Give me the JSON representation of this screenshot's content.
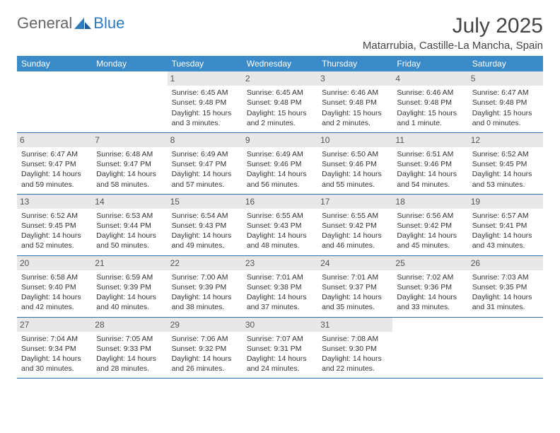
{
  "brand": {
    "part1": "General",
    "part2": "Blue"
  },
  "title": "July 2025",
  "location": "Matarrubia, Castille-La Mancha, Spain",
  "colors": {
    "header_bg": "#3b8bc9",
    "header_text": "#ffffff",
    "row_border": "#2d6ea8",
    "daynum_bg": "#e8e8e8",
    "text": "#333333",
    "logo_blue": "#2d7cc1"
  },
  "dayHeaders": [
    "Sunday",
    "Monday",
    "Tuesday",
    "Wednesday",
    "Thursday",
    "Friday",
    "Saturday"
  ],
  "weeks": [
    [
      null,
      null,
      {
        "n": "1",
        "sr": "Sunrise: 6:45 AM",
        "ss": "Sunset: 9:48 PM",
        "d1": "Daylight: 15 hours",
        "d2": "and 3 minutes."
      },
      {
        "n": "2",
        "sr": "Sunrise: 6:45 AM",
        "ss": "Sunset: 9:48 PM",
        "d1": "Daylight: 15 hours",
        "d2": "and 2 minutes."
      },
      {
        "n": "3",
        "sr": "Sunrise: 6:46 AM",
        "ss": "Sunset: 9:48 PM",
        "d1": "Daylight: 15 hours",
        "d2": "and 2 minutes."
      },
      {
        "n": "4",
        "sr": "Sunrise: 6:46 AM",
        "ss": "Sunset: 9:48 PM",
        "d1": "Daylight: 15 hours",
        "d2": "and 1 minute."
      },
      {
        "n": "5",
        "sr": "Sunrise: 6:47 AM",
        "ss": "Sunset: 9:48 PM",
        "d1": "Daylight: 15 hours",
        "d2": "and 0 minutes."
      }
    ],
    [
      {
        "n": "6",
        "sr": "Sunrise: 6:47 AM",
        "ss": "Sunset: 9:47 PM",
        "d1": "Daylight: 14 hours",
        "d2": "and 59 minutes."
      },
      {
        "n": "7",
        "sr": "Sunrise: 6:48 AM",
        "ss": "Sunset: 9:47 PM",
        "d1": "Daylight: 14 hours",
        "d2": "and 58 minutes."
      },
      {
        "n": "8",
        "sr": "Sunrise: 6:49 AM",
        "ss": "Sunset: 9:47 PM",
        "d1": "Daylight: 14 hours",
        "d2": "and 57 minutes."
      },
      {
        "n": "9",
        "sr": "Sunrise: 6:49 AM",
        "ss": "Sunset: 9:46 PM",
        "d1": "Daylight: 14 hours",
        "d2": "and 56 minutes."
      },
      {
        "n": "10",
        "sr": "Sunrise: 6:50 AM",
        "ss": "Sunset: 9:46 PM",
        "d1": "Daylight: 14 hours",
        "d2": "and 55 minutes."
      },
      {
        "n": "11",
        "sr": "Sunrise: 6:51 AM",
        "ss": "Sunset: 9:46 PM",
        "d1": "Daylight: 14 hours",
        "d2": "and 54 minutes."
      },
      {
        "n": "12",
        "sr": "Sunrise: 6:52 AM",
        "ss": "Sunset: 9:45 PM",
        "d1": "Daylight: 14 hours",
        "d2": "and 53 minutes."
      }
    ],
    [
      {
        "n": "13",
        "sr": "Sunrise: 6:52 AM",
        "ss": "Sunset: 9:45 PM",
        "d1": "Daylight: 14 hours",
        "d2": "and 52 minutes."
      },
      {
        "n": "14",
        "sr": "Sunrise: 6:53 AM",
        "ss": "Sunset: 9:44 PM",
        "d1": "Daylight: 14 hours",
        "d2": "and 50 minutes."
      },
      {
        "n": "15",
        "sr": "Sunrise: 6:54 AM",
        "ss": "Sunset: 9:43 PM",
        "d1": "Daylight: 14 hours",
        "d2": "and 49 minutes."
      },
      {
        "n": "16",
        "sr": "Sunrise: 6:55 AM",
        "ss": "Sunset: 9:43 PM",
        "d1": "Daylight: 14 hours",
        "d2": "and 48 minutes."
      },
      {
        "n": "17",
        "sr": "Sunrise: 6:55 AM",
        "ss": "Sunset: 9:42 PM",
        "d1": "Daylight: 14 hours",
        "d2": "and 46 minutes."
      },
      {
        "n": "18",
        "sr": "Sunrise: 6:56 AM",
        "ss": "Sunset: 9:42 PM",
        "d1": "Daylight: 14 hours",
        "d2": "and 45 minutes."
      },
      {
        "n": "19",
        "sr": "Sunrise: 6:57 AM",
        "ss": "Sunset: 9:41 PM",
        "d1": "Daylight: 14 hours",
        "d2": "and 43 minutes."
      }
    ],
    [
      {
        "n": "20",
        "sr": "Sunrise: 6:58 AM",
        "ss": "Sunset: 9:40 PM",
        "d1": "Daylight: 14 hours",
        "d2": "and 42 minutes."
      },
      {
        "n": "21",
        "sr": "Sunrise: 6:59 AM",
        "ss": "Sunset: 9:39 PM",
        "d1": "Daylight: 14 hours",
        "d2": "and 40 minutes."
      },
      {
        "n": "22",
        "sr": "Sunrise: 7:00 AM",
        "ss": "Sunset: 9:39 PM",
        "d1": "Daylight: 14 hours",
        "d2": "and 38 minutes."
      },
      {
        "n": "23",
        "sr": "Sunrise: 7:01 AM",
        "ss": "Sunset: 9:38 PM",
        "d1": "Daylight: 14 hours",
        "d2": "and 37 minutes."
      },
      {
        "n": "24",
        "sr": "Sunrise: 7:01 AM",
        "ss": "Sunset: 9:37 PM",
        "d1": "Daylight: 14 hours",
        "d2": "and 35 minutes."
      },
      {
        "n": "25",
        "sr": "Sunrise: 7:02 AM",
        "ss": "Sunset: 9:36 PM",
        "d1": "Daylight: 14 hours",
        "d2": "and 33 minutes."
      },
      {
        "n": "26",
        "sr": "Sunrise: 7:03 AM",
        "ss": "Sunset: 9:35 PM",
        "d1": "Daylight: 14 hours",
        "d2": "and 31 minutes."
      }
    ],
    [
      {
        "n": "27",
        "sr": "Sunrise: 7:04 AM",
        "ss": "Sunset: 9:34 PM",
        "d1": "Daylight: 14 hours",
        "d2": "and 30 minutes."
      },
      {
        "n": "28",
        "sr": "Sunrise: 7:05 AM",
        "ss": "Sunset: 9:33 PM",
        "d1": "Daylight: 14 hours",
        "d2": "and 28 minutes."
      },
      {
        "n": "29",
        "sr": "Sunrise: 7:06 AM",
        "ss": "Sunset: 9:32 PM",
        "d1": "Daylight: 14 hours",
        "d2": "and 26 minutes."
      },
      {
        "n": "30",
        "sr": "Sunrise: 7:07 AM",
        "ss": "Sunset: 9:31 PM",
        "d1": "Daylight: 14 hours",
        "d2": "and 24 minutes."
      },
      {
        "n": "31",
        "sr": "Sunrise: 7:08 AM",
        "ss": "Sunset: 9:30 PM",
        "d1": "Daylight: 14 hours",
        "d2": "and 22 minutes."
      },
      null,
      null
    ]
  ]
}
